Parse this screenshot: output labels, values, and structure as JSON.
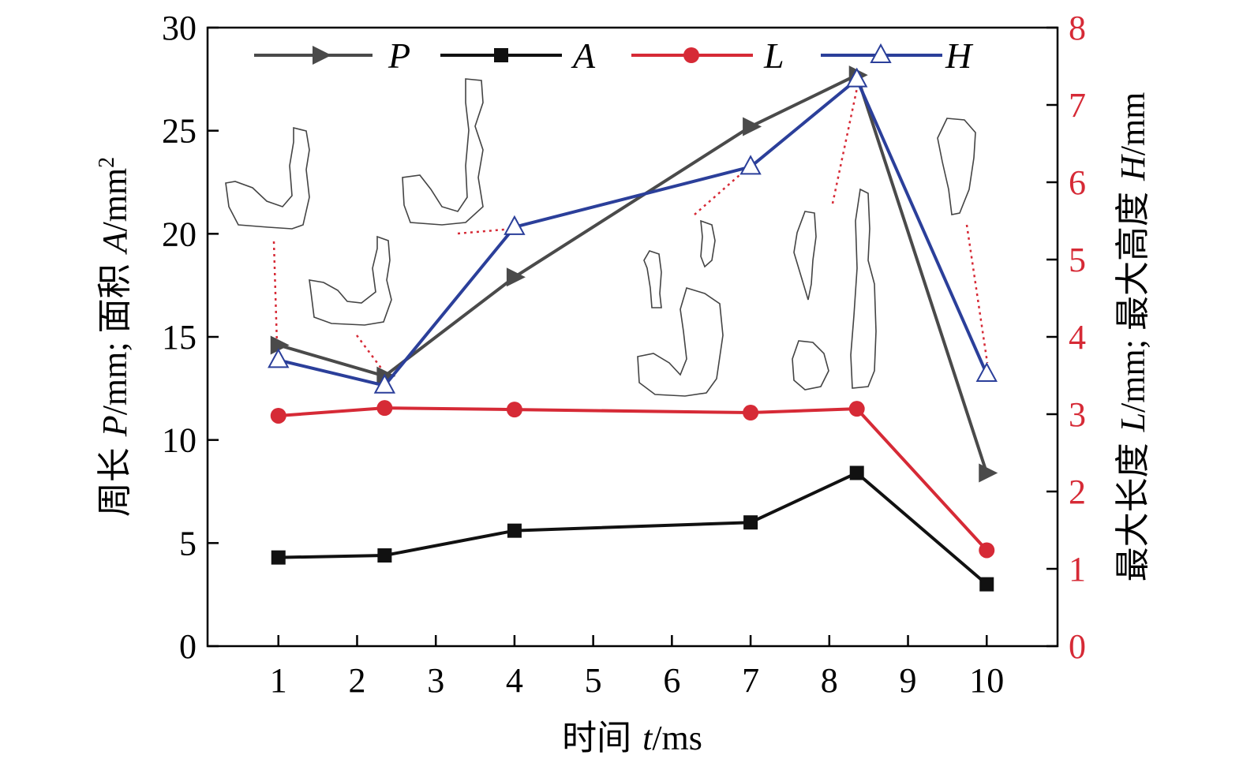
{
  "chart_data": {
    "type": "line",
    "x": [
      1,
      2.35,
      4,
      7,
      8.35,
      10
    ],
    "xticks": [
      "1",
      "2",
      "3",
      "4",
      "5",
      "6",
      "7",
      "8",
      "9",
      "10"
    ],
    "xtick_positions": [
      1,
      2,
      3,
      4,
      5,
      6,
      7,
      8,
      9,
      10
    ],
    "xlim": [
      0.1,
      10.9
    ],
    "y_left": {
      "ylim": [
        0,
        30
      ],
      "ticks": [
        "0",
        "5",
        "10",
        "15",
        "20",
        "25",
        "30"
      ]
    },
    "y_right": {
      "ylim": [
        0,
        8
      ],
      "ticks": [
        "0",
        "1",
        "2",
        "3",
        "4",
        "5",
        "6",
        "7",
        "8"
      ],
      "color": "#d62a36"
    },
    "xlabel": {
      "cn": "时间 ",
      "var": "t",
      "unit": "/ms"
    },
    "ylabel_left": {
      "cn1": "周长 ",
      "var1": "P",
      "unit1": "/mm; ",
      "cn2": "面积 ",
      "var2": "A",
      "unit2": "/mm",
      "sup": "2"
    },
    "ylabel_right": {
      "cn1": "最大长度 ",
      "var1": "L",
      "unit1": "/mm; ",
      "cn2": "最大高度 ",
      "var2": "H",
      "unit2": "/mm"
    },
    "legend_position": "top",
    "series": [
      {
        "name": "P",
        "axis": "left",
        "color": "#4a4a4a",
        "marker": "triangle-right",
        "values": [
          14.6,
          13.1,
          17.9,
          25.2,
          27.7,
          8.4
        ]
      },
      {
        "name": "A",
        "axis": "left",
        "color": "#111111",
        "marker": "square",
        "values": [
          4.3,
          4.4,
          5.6,
          6.0,
          8.4,
          3.0
        ]
      },
      {
        "name": "L",
        "axis": "right",
        "color": "#d62a36",
        "marker": "circle",
        "values": [
          2.98,
          3.08,
          3.06,
          3.02,
          3.07,
          1.24
        ]
      },
      {
        "name": "H",
        "axis": "right",
        "color": "#2b3f9a",
        "marker": "triangle-up-open",
        "values": [
          3.7,
          3.37,
          5.42,
          6.2,
          7.33,
          3.52
        ]
      }
    ],
    "annotations": "Outline sketches of the droplet shape at each time point, connected to the H data points by red dotted leader lines"
  }
}
